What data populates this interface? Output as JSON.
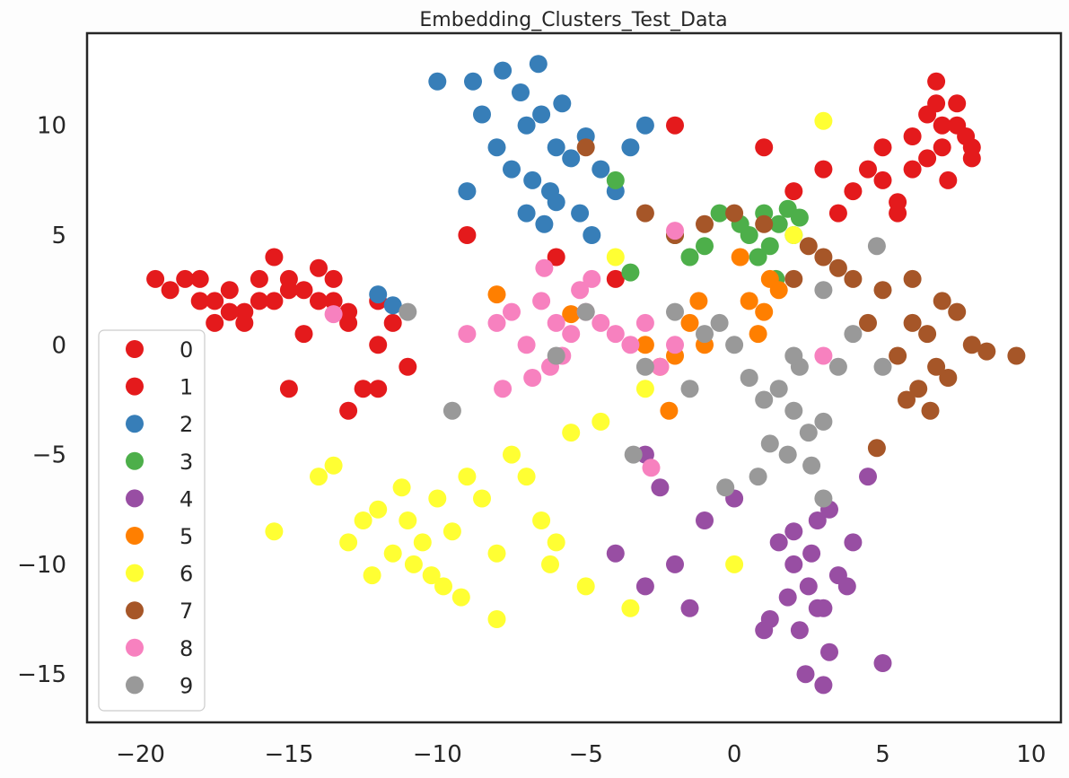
{
  "chart_data": {
    "type": "scatter",
    "title": "Embedding_Clusters_Test_Data",
    "xlabel": "",
    "ylabel": "",
    "xlim": [
      -21.8,
      11
    ],
    "ylim": [
      -17.2,
      14.2
    ],
    "xticks": [
      -20,
      -15,
      -10,
      -5,
      0,
      5,
      10
    ],
    "yticks": [
      10,
      5,
      0,
      -5,
      -10,
      -15
    ],
    "xtick_labels": [
      "−20",
      "−15",
      "−10",
      "−5",
      "0",
      "5",
      "10"
    ],
    "ytick_labels": [
      "10",
      "5",
      "0",
      "−5",
      "−10",
      "−15"
    ],
    "grid": false,
    "legend_position": "lower-left",
    "series": [
      {
        "name": "0",
        "color": "#e41a1c",
        "x": [
          -18,
          -17,
          -16,
          -15,
          -14,
          -13,
          -17.5,
          -16.5,
          -15.5,
          -14.5,
          -13.5,
          -12,
          -11.5,
          -19,
          -18.5,
          7,
          7.5,
          8,
          6.5,
          6,
          5,
          4,
          7.2,
          6.8,
          7.8,
          5.5,
          3,
          2,
          -9,
          -6,
          -4
        ],
        "y": [
          2,
          2.5,
          3,
          2.5,
          2,
          1.5,
          1,
          1.5,
          2,
          0.5,
          3,
          2,
          1,
          2.5,
          3,
          9,
          10,
          8.5,
          10.5,
          8,
          9,
          7,
          7.5,
          11,
          9.5,
          6.5,
          8,
          7,
          5,
          4,
          3
        ]
      },
      {
        "name": "1",
        "color": "#e41a1c",
        "x": [
          -17,
          -16,
          -15,
          -14,
          -13,
          -12,
          -18,
          -15.5,
          -14.5,
          -13.5,
          -16.5,
          -17.5,
          -19.5,
          -11,
          -12.5,
          6,
          7,
          8,
          6.5,
          7.5,
          5,
          4.5,
          3.5,
          5.5,
          6.8,
          1,
          -2,
          -15,
          -13,
          -12
        ],
        "y": [
          1.5,
          2,
          3,
          3.5,
          1,
          0,
          3,
          4,
          2.5,
          2,
          1,
          2,
          3,
          -1,
          -2,
          9.5,
          10,
          9,
          8.5,
          11,
          7.5,
          8,
          6,
          6,
          12,
          9,
          10,
          -2,
          -3,
          -2
        ]
      },
      {
        "name": "2",
        "color": "#377eb8",
        "x": [
          -7,
          -6.5,
          -6,
          -5.5,
          -5,
          -7.5,
          -8,
          -6.8,
          -6.2,
          -5.8,
          -4.5,
          -4,
          -8.5,
          -7.2,
          -5.2,
          -6.4,
          -3.5,
          -9,
          -8.8,
          -7.8,
          -4.8,
          -3,
          -6,
          -7,
          -10,
          -12,
          -11.5,
          -6.6
        ],
        "y": [
          10,
          10.5,
          9,
          8.5,
          9.5,
          8,
          9,
          7.5,
          7,
          11,
          8,
          7,
          10.5,
          11.5,
          6,
          5.5,
          9,
          7,
          12,
          12.5,
          5,
          10,
          6.5,
          6,
          12,
          2.3,
          1.8,
          12.8
        ]
      },
      {
        "name": "3",
        "color": "#4daf4a",
        "x": [
          1,
          1.5,
          2,
          0.5,
          1.2,
          1.8,
          0.8,
          2.2,
          0.2,
          1.4,
          -2,
          -1.5,
          -1,
          -0.5,
          -4,
          -3.5
        ],
        "y": [
          6,
          5.5,
          5,
          5,
          4.5,
          6.2,
          4,
          5.8,
          5.5,
          3,
          5,
          4,
          4.5,
          6,
          7.5,
          3.3
        ]
      },
      {
        "name": "4",
        "color": "#984ea3",
        "x": [
          2,
          2.5,
          3,
          1.5,
          3.5,
          2.2,
          2.8,
          1.8,
          3.2,
          2.6,
          1.2,
          3.8,
          2.4,
          0,
          -1,
          -2,
          -3,
          -1.5,
          4.5,
          5,
          1,
          3,
          2,
          -3,
          -4,
          -2.5,
          4,
          3.2,
          2.8
        ],
        "y": [
          -10,
          -11,
          -12,
          -9,
          -10.5,
          -13,
          -8,
          -11.5,
          -14,
          -9.5,
          -12.5,
          -11,
          -15,
          -7,
          -8,
          -10,
          -11,
          -12,
          -6,
          -14.5,
          -13,
          -15.5,
          -8.5,
          -5,
          -9.5,
          -6.5,
          -9,
          -7.5,
          -12
        ]
      },
      {
        "name": "5",
        "color": "#ff7f00",
        "x": [
          0.5,
          1,
          0.8,
          1.2,
          -1.5,
          -1,
          -2,
          -2.5,
          0.2,
          1.5,
          -1.2,
          -3,
          -2.2,
          -8,
          -5.5
        ],
        "y": [
          2,
          1.5,
          0.5,
          3,
          1,
          0,
          -0.5,
          -1,
          4,
          2.5,
          2,
          0,
          -3,
          2.3,
          1.4
        ]
      },
      {
        "name": "6",
        "color": "#ffff33",
        "x": [
          -11,
          -10.5,
          -10,
          -9.5,
          -11.5,
          -12,
          -9,
          -10.8,
          -10.2,
          -11.2,
          -9.8,
          -12.5,
          -8.5,
          -8,
          -13,
          -7.5,
          -7,
          -6.5,
          -6,
          -13.5,
          -14,
          -15.5,
          -12.2,
          -9.2,
          -5.5,
          -4.5,
          -6.2,
          -5,
          -3.5,
          -3,
          -8,
          0,
          3,
          2,
          -4
        ],
        "y": [
          -8,
          -9,
          -7,
          -8.5,
          -9.5,
          -7.5,
          -6,
          -10,
          -10.5,
          -6.5,
          -11,
          -8,
          -7,
          -9.5,
          -9,
          -5,
          -6,
          -8,
          -9,
          -5.5,
          -6,
          -8.5,
          -10.5,
          -11.5,
          -4,
          -3.5,
          -10,
          -11,
          -12,
          -2,
          -12.5,
          -10,
          10.2,
          5,
          4
        ]
      },
      {
        "name": "7",
        "color": "#a65628",
        "x": [
          6,
          6.5,
          7,
          7.5,
          5.5,
          8,
          5,
          4.5,
          6.2,
          6.8,
          7.2,
          8.5,
          4,
          3.5,
          3,
          2.5,
          2,
          9.5,
          5.8,
          6.6,
          1,
          0,
          -1,
          -2,
          -3,
          4.8,
          6,
          -5
        ],
        "y": [
          1,
          0.5,
          2,
          1.5,
          -0.5,
          0,
          2.5,
          1,
          -2,
          -1,
          -1.5,
          -0.3,
          3,
          3.5,
          4,
          4.5,
          3,
          -0.5,
          -2.5,
          -3,
          5.5,
          6,
          5.5,
          5,
          6,
          -4.7,
          3,
          9
        ]
      },
      {
        "name": "8",
        "color": "#f781bf",
        "x": [
          -6,
          -5.5,
          -5,
          -6.5,
          -7,
          -4.5,
          -4,
          -7.5,
          -6.2,
          -5.8,
          -5.2,
          -3.5,
          -3,
          -8,
          -6.8,
          -4.8,
          -2.5,
          -9,
          -2,
          -7.8,
          -6.4,
          -2.8,
          -13.5,
          -2,
          3
        ],
        "y": [
          1,
          0.5,
          1.5,
          2,
          0,
          1,
          0.5,
          1.5,
          -1,
          -0.5,
          2.5,
          0,
          1,
          1,
          -1.5,
          3,
          -1,
          0.5,
          0,
          -2,
          3.5,
          -5.6,
          1.4,
          5.2,
          -0.5
        ]
      },
      {
        "name": "9",
        "color": "#999999",
        "x": [
          1.5,
          2,
          1,
          2.5,
          0.5,
          3,
          1.8,
          2.2,
          1.2,
          0,
          -0.5,
          -1,
          -1.5,
          3.5,
          4,
          0.8,
          2.6,
          -2,
          3,
          -3,
          -5,
          -9.5,
          -11,
          -6,
          -3.4,
          -0.3,
          5,
          4.8,
          3,
          2
        ],
        "y": [
          -2,
          -3,
          -2.5,
          -4,
          -1.5,
          -3.5,
          -5,
          -1,
          -4.5,
          0,
          1,
          0.5,
          -2,
          -1,
          0.5,
          -6,
          -5.5,
          1.5,
          2.5,
          -1,
          1.5,
          -3,
          1.5,
          -0.5,
          -5,
          -6.5,
          -1,
          4.5,
          -7,
          -0.5
        ]
      }
    ]
  }
}
